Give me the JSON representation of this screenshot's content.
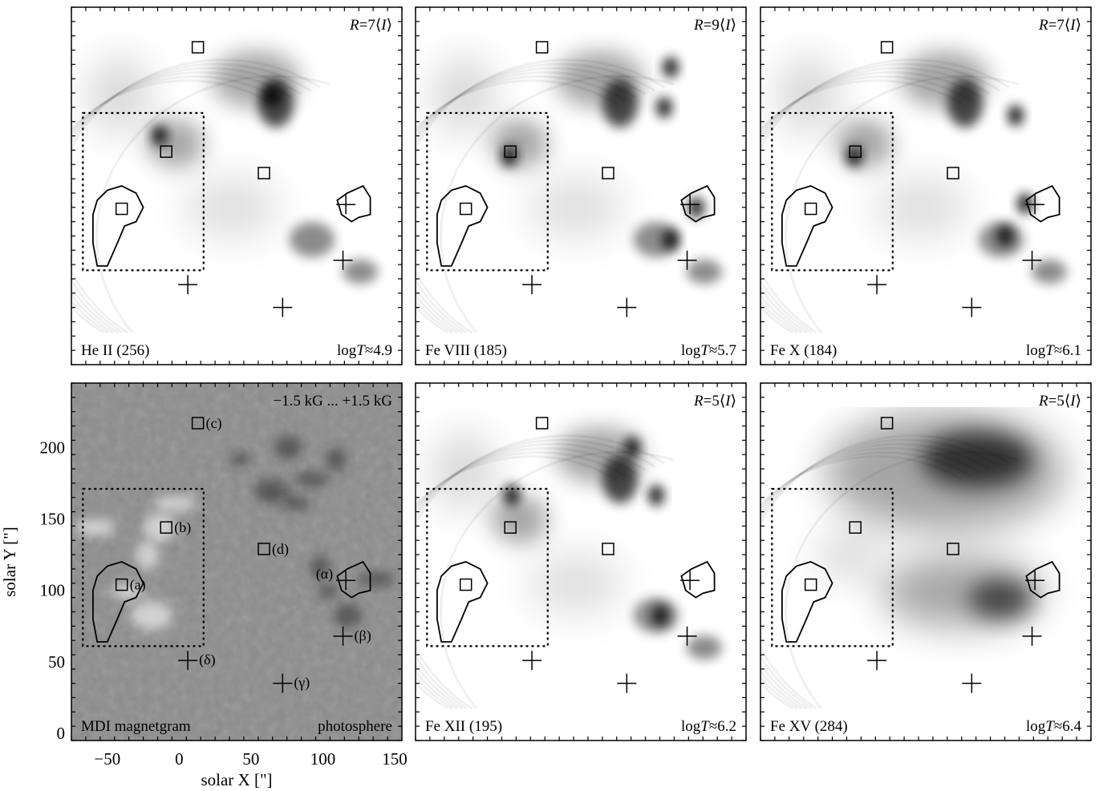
{
  "figure": {
    "panels": [
      {
        "id": "he2",
        "line": "He II (256)",
        "temp_prefix": "log",
        "temp_var": "T",
        "temp_rest": "≈4.9",
        "scale_prefix": "R",
        "scale_rest": "=7⟨",
        "scale_var": "I",
        "scale_close": "⟩",
        "style": "euv",
        "has_top_strip": false
      },
      {
        "id": "fe8",
        "line": "Fe VIII (185)",
        "temp_prefix": "log",
        "temp_var": "T",
        "temp_rest": "≈5.7",
        "scale_prefix": "R",
        "scale_rest": "=9⟨",
        "scale_var": "I",
        "scale_close": "⟩",
        "style": "euv",
        "has_top_strip": true
      },
      {
        "id": "fe10",
        "line": "Fe X (184)",
        "temp_prefix": "log",
        "temp_var": "T",
        "temp_rest": "≈6.1",
        "scale_prefix": "R",
        "scale_rest": "=7⟨",
        "scale_var": "I",
        "scale_close": "⟩",
        "style": "euv",
        "has_top_strip": true
      },
      {
        "id": "mdi",
        "line": "MDI magnetgram",
        "right_label": "photosphere",
        "top_label": "−1.5 kG ... +1.5 kG",
        "style": "magnetogram",
        "has_top_strip": false
      },
      {
        "id": "fe12",
        "line": "Fe XII (195)",
        "temp_prefix": "log",
        "temp_var": "T",
        "temp_rest": "≈6.2",
        "scale_prefix": "R",
        "scale_rest": "=5⟨",
        "scale_var": "I",
        "scale_close": "⟩",
        "style": "euv",
        "has_top_strip": true
      },
      {
        "id": "fe15",
        "line": "Fe XV (284)",
        "temp_prefix": "log",
        "temp_var": "T",
        "temp_rest": "≈6.4",
        "scale_prefix": "R",
        "scale_rest": "=5⟨",
        "scale_var": "I",
        "scale_close": "⟩",
        "style": "euv-hot",
        "has_top_strip": true
      }
    ],
    "axes": {
      "xlabel": "solar X  [\"]",
      "ylabel": "solar Y  [\"]",
      "xlim": [
        -75,
        155
      ],
      "ylim": [
        -5,
        245
      ],
      "x_ticks": [
        -50,
        0,
        50,
        100,
        150
      ],
      "y_ticks": [
        0,
        50,
        100,
        150,
        200
      ]
    },
    "features": {
      "squares": [
        {
          "label": "(a)",
          "x": -40,
          "y": 104
        },
        {
          "label": "(b)",
          "x": -9,
          "y": 144
        },
        {
          "label": "(c)",
          "x": 13,
          "y": 217
        },
        {
          "label": "(d)",
          "x": 59,
          "y": 129
        }
      ],
      "crosses": [
        {
          "label": "(α)",
          "x": 116,
          "y": 107
        },
        {
          "label": "(β)",
          "x": 114,
          "y": 68
        },
        {
          "label": "(γ)",
          "x": 72,
          "y": 35
        },
        {
          "label": "(δ)",
          "x": 6,
          "y": 51
        }
      ],
      "dotted_box": {
        "x0": -67,
        "x1": 17,
        "y0": 61,
        "y1": 171
      }
    }
  }
}
